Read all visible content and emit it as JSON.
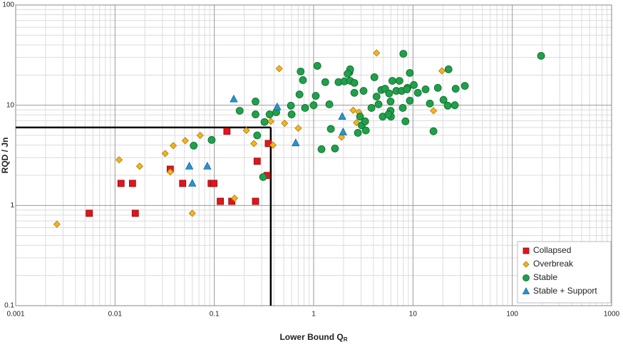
{
  "chart_data": {
    "type": "scatter",
    "xlabel": "Lower Bound Q",
    "xlabel_subscript": "R",
    "ylabel": "RQD / Jn",
    "xscale": "log",
    "yscale": "log",
    "xlim": [
      0.001,
      1000
    ],
    "ylim": [
      0.1,
      100
    ],
    "xticks": [
      0.001,
      0.01,
      0.1,
      1,
      10,
      100,
      1000
    ],
    "yticks": [
      0.1,
      1,
      10,
      100
    ],
    "grid": true,
    "legend": "lower right",
    "boundary": {
      "x": 0.37,
      "y": 6
    },
    "series": [
      {
        "name": "Collapsed",
        "color": "#e3141b",
        "marker": "square",
        "x": [
          0.0055,
          0.016,
          0.0115,
          0.015,
          0.036,
          0.048,
          0.093,
          0.099,
          0.134,
          0.115,
          0.15,
          0.27,
          0.26,
          0.34,
          0.35
        ],
        "values": [
          0.835,
          0.835,
          1.66,
          1.66,
          2.3,
          1.66,
          1.66,
          1.66,
          5.5,
          1.1,
          1.1,
          2.76,
          1.1,
          1.99,
          4.15
        ]
      },
      {
        "name": "Overbreak",
        "color": "#f4b41a",
        "marker": "diamond",
        "x": [
          0.0026,
          0.011,
          0.0177,
          0.032,
          0.036,
          0.0386,
          0.051,
          0.072,
          0.06,
          0.16,
          0.21,
          0.25,
          0.39,
          0.37,
          0.45,
          0.51,
          0.7,
          4.3,
          19.6,
          16.1,
          1.91,
          2.7,
          2.86,
          2.5
        ],
        "values": [
          0.65,
          2.85,
          2.46,
          3.3,
          2.16,
          3.95,
          4.43,
          5.0,
          0.835,
          1.18,
          5.6,
          4.15,
          4.0,
          6.9,
          23.2,
          6.6,
          5.9,
          33.2,
          22.0,
          8.8,
          4.8,
          6.7,
          8.5,
          8.9
        ]
      },
      {
        "name": "Stable",
        "color": "#1fa04a",
        "marker": "circle",
        "x": [
          0.062,
          0.094,
          0.18,
          0.26,
          0.26,
          0.27,
          0.31,
          0.32,
          0.36,
          0.42,
          0.59,
          0.6,
          0.78,
          0.82,
          1.09,
          1.31,
          1.44,
          1.2,
          1.49,
          1.64,
          1.78,
          2.04,
          2.29,
          2.33,
          2.2,
          2.33,
          2.57,
          2.57,
          2.79,
          2.93,
          3.05,
          3.18,
          3.3,
          3.35,
          3.82,
          4.09,
          4.3,
          4.5,
          4.8,
          4.96,
          5.24,
          5.75,
          5.95,
          6.0,
          5.95,
          6.2,
          6.8,
          7.3,
          7.7,
          7.9,
          8.4,
          8.0,
          8.8,
          9.3,
          10.2,
          11.2,
          13.4,
          14.8,
          16.1,
          17.8,
          20.3,
          22.4,
          22.8,
          26.4,
          26.9,
          33.3,
          195,
          0.72,
          0.74,
          1.0,
          1.05,
          5.66,
          8.7,
          9.3
        ],
        "values": [
          3.95,
          4.5,
          8.8,
          10.9,
          8.1,
          5.0,
          1.92,
          6.8,
          8.1,
          8.5,
          9.9,
          8.1,
          17.8,
          9.4,
          24.7,
          17.0,
          10.2,
          3.64,
          5.8,
          3.7,
          17.0,
          17.3,
          21.3,
          22.8,
          20.6,
          17.5,
          13.3,
          16.7,
          5.3,
          7.7,
          6.3,
          13.9,
          6.9,
          5.6,
          9.4,
          19.0,
          12.2,
          10.2,
          14.2,
          7.7,
          14.6,
          13.1,
          8.8,
          7.7,
          10.9,
          17.5,
          13.9,
          17.5,
          13.9,
          9.4,
          6.9,
          32.6,
          14.9,
          11.1,
          15.9,
          13.3,
          14.4,
          10.4,
          5.5,
          14.9,
          11.3,
          9.9,
          22.8,
          10.0,
          14.6,
          15.6,
          31.1,
          12.8,
          21.7,
          10.0,
          12.4,
          8.1,
          14.4,
          21.0
        ]
      },
      {
        "name": "Stable + Support",
        "color": "#2596d1",
        "marker": "triangle",
        "x": [
          0.157,
          0.43,
          0.66,
          1.94,
          1.98,
          0.056,
          0.085,
          0.06
        ],
        "values": [
          11.5,
          9.6,
          4.2,
          7.7,
          5.4,
          2.46,
          2.46,
          1.66
        ]
      }
    ]
  }
}
